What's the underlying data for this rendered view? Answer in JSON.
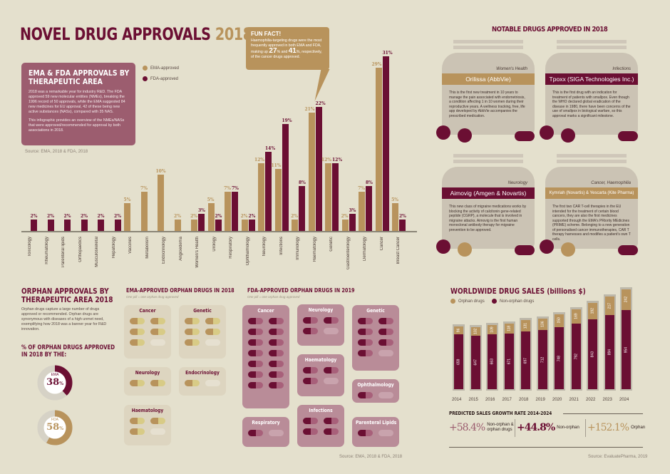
{
  "header": {
    "title": "NOVEL DRUG APPROVALS",
    "year": "2018"
  },
  "intro": {
    "title": "EMA & FDA APPROVALS BY THERAPEUTIC AREA",
    "p1": "2018 was a remarkable year for industry R&D. The FDA approved 59 new molecular entities (NMEs), breaking the 1996 record of 50 approvals, while the EMA suggested 84 new medicines for EU approval, 42 of these being new active substances (NASs), compared with 35 NAS.",
    "p2": "This infographic provides an overview of the NMEs/NASs that were approved/recommended for approval by both associations in 2018.",
    "source": "Source: EMA, 2018 & FDA, 2018"
  },
  "fun_fact": {
    "title": "FUN FACT!",
    "text1": "Haemophilia-targeting drugs were the most frequently approved in both EMA and FDA, making up",
    "v1": "27",
    "mid": "% and",
    "v2": "41",
    "text2": "%, respectively, of the cancer drugs approved."
  },
  "colors": {
    "ema": "#b8935c",
    "fda": "#6b0f33",
    "bg": "#e4e0cd",
    "box": "#9c5d6f"
  },
  "chart_data": [
    {
      "type": "bar",
      "title": "EMA & FDA approvals by therapeutic area",
      "legend": [
        "EMA-approved",
        "FDA-approved"
      ],
      "legend_position": "top-left",
      "unit_suffix": "%",
      "categories": [
        "Toxicology",
        "Rheumatology",
        "Parenteral lipids",
        "Orthopaedics",
        "Musculoskeletal",
        "Hepatology",
        "Vaccines",
        "Metabolism",
        "Endocrinology",
        "Angioedema",
        "Women's Health",
        "Urology",
        "Respiratory",
        "Ophthalmology",
        "Neurology",
        "Infections",
        "Immunology",
        "Haematology",
        "Genetic",
        "Gastroenterology",
        "Dermatology",
        "Cancer",
        "Breast Cancer"
      ],
      "series": [
        {
          "name": "EMA-approved",
          "values": [
            null,
            null,
            null,
            null,
            null,
            null,
            5,
            7,
            10,
            2,
            2,
            5,
            7,
            2,
            12,
            11,
            2,
            21,
            12,
            2,
            7,
            29,
            5
          ]
        },
        {
          "name": "FDA-approved",
          "values": [
            2,
            2,
            2,
            2,
            2,
            2,
            null,
            null,
            null,
            null,
            3,
            2,
            7,
            2,
            14,
            19,
            8,
            22,
            12,
            3,
            8,
            31,
            2
          ]
        }
      ],
      "ylim": [
        0,
        32
      ]
    },
    {
      "type": "bar",
      "stacked": true,
      "title": "WORLDWIDE DRUG SALES (billions $)",
      "legend": [
        "Orphan drugs",
        "Non-orphan drugs"
      ],
      "legend_position": "top-left",
      "categories": [
        "2014",
        "2015",
        "2016",
        "2017",
        "2018",
        "2019",
        "2020",
        "2021",
        "2022",
        "2023",
        "2024"
      ],
      "series": [
        {
          "name": "Non-orphan drugs",
          "values": [
            659,
            647,
            663,
            671,
            697,
            712,
            748,
            792,
            843,
            894,
            954
          ]
        },
        {
          "name": "Orphan drugs",
          "values": [
            96,
            102,
            109,
            118,
            131,
            136,
            150,
            169,
            192,
            217,
            242
          ]
        }
      ],
      "ylim": [
        0,
        1200
      ]
    }
  ],
  "notable": {
    "title": "NOTABLE DRUGS APPROVED IN 2018",
    "drugs": [
      {
        "area": "Women's Health",
        "name": "Orilissa (AbbVie)",
        "text": "This is the first new treatment in 10 years to manage the pain associated with endometriosis, a condition affecting 1 in 10 women during their reproductive years. A wellness tracking, free, life app developed by AbbVie accompanies the prescribed medication."
      },
      {
        "area": "Infections",
        "name": "Tpoxx (SIGA Technologies Inc.)",
        "text": "This is the first drug with an indication for treatment of patients with smallpox. Even though the WHO declared global eradication of the disease in 1980, there have been concerns of the use of smallpox in biological warfare, so this approval marks a significant milestone."
      },
      {
        "area": "Neurology",
        "name": "Aimovig (Amgen & Novartis)",
        "text": "This new class of migraine medications works by blocking the activity of calcitonin gene-related peptide (CGRP), a molecule that is involved in migraine attacks. Aimovig is the first human monoclonal antibody therapy for migraine prevention to be approved."
      },
      {
        "area": "Cancer, Haemophilia",
        "name": "Kymriah (Novartis) & Yescarta (Kite Pharma)",
        "text": "The first two CAR T-cell therapies in the EU intended for the treatment of certain blood cancers, they are also the first medicines supported through the EMA's PRiority MEdicines (PRIME) scheme. Belonging to a new generation of personalised cancer immunotherapies, CAR T therapy harnesses and modifies a patient's own T cells."
      }
    ]
  },
  "orphan": {
    "title": "ORPHAN APPROVALS BY THERAPEUTIC AREA 2018",
    "text": "Orphan drugs capture a large number of drugs approved or recommended. Orphan drugs are synonymous with diseases of a high unmet need, exemplifying how 2018 was a banner year for R&D innovation.",
    "pct_title": "% OF ORPHAN DRUGS APPROVED IN 2018 BY THE:",
    "ema": {
      "label": "EMA",
      "value": "38",
      "pct": 38
    },
    "fda": {
      "label": "FDA",
      "value": "58",
      "pct": 58
    },
    "pct_sign": "%"
  },
  "ema_orphan": {
    "title": "EMA-APPROVED ORPHAN DRUGS IN 2018",
    "note": "One pill = one orphan drug approved",
    "groups": [
      {
        "name": "Cancer",
        "count": 5
      },
      {
        "name": "Genetic",
        "count": 5
      },
      {
        "name": "Neurology",
        "count": 2
      },
      {
        "name": "Endocrinology",
        "count": 1
      },
      {
        "name": "Haematology",
        "count": 3
      }
    ]
  },
  "fda_orphan": {
    "title": "FDA-APPROVED ORPHAN DRUGS IN 2019",
    "note": "One pill = one orphan drug approved",
    "source": "Source: EMA, 2018 & FDA, 2018",
    "groups": [
      {
        "name": "Cancer",
        "count": 14
      },
      {
        "name": "Neurology",
        "count": 3
      },
      {
        "name": "Genetic",
        "count": 7
      },
      {
        "name": "Haematology",
        "count": 3
      },
      {
        "name": "Ophthalmology",
        "count": 1
      },
      {
        "name": "Respiratory",
        "count": 1
      },
      {
        "name": "Infections",
        "count": 4
      },
      {
        "name": "Parenteral Lipids",
        "count": 1
      }
    ]
  },
  "growth": {
    "title": "PREDICTED SALES GROWTH RATE 2014-2024",
    "items": [
      {
        "value": "+58.4%",
        "label": "Non-orphan & orphan drugs",
        "color": "#9c5d6f"
      },
      {
        "value": "+44.8%",
        "label": "Non-orphan",
        "color": "#6b0f33"
      },
      {
        "value": "+152.1%",
        "label": "Orphan",
        "color": "#b8935c"
      }
    ],
    "source": "Source: EvaluatePharma, 2019"
  }
}
